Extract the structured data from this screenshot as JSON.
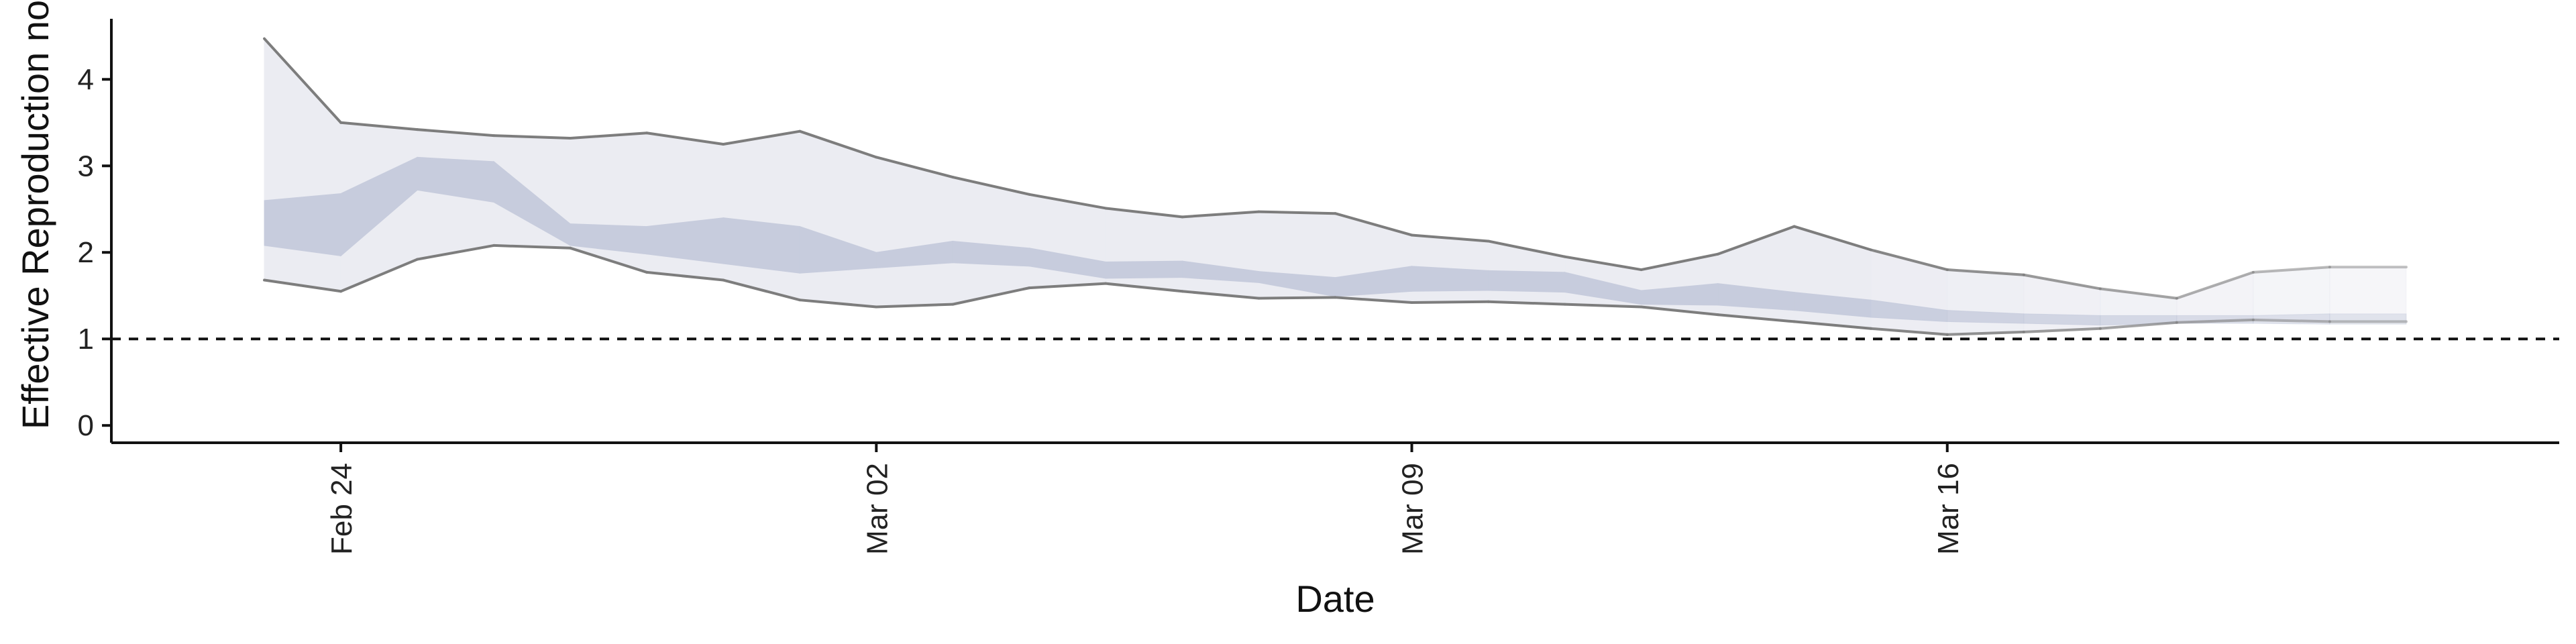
{
  "chart_data": {
    "type": "area",
    "title": "",
    "xlabel": "Date",
    "ylabel": "Effective Reproduction no",
    "ylim": [
      -0.2,
      4.7
    ],
    "xlim": [
      "2020-02-21",
      "2020-03-24"
    ],
    "x_ticks": [
      {
        "date": "2020-02-24",
        "label": "Feb 24"
      },
      {
        "date": "2020-03-02",
        "label": "Mar 02"
      },
      {
        "date": "2020-03-09",
        "label": "Mar 09"
      },
      {
        "date": "2020-03-16",
        "label": "Mar 16"
      }
    ],
    "y_ticks": [
      0,
      1,
      2,
      3,
      4
    ],
    "reference_line": {
      "y": 1,
      "style": "dashed"
    },
    "grid": false,
    "colors": {
      "outer_band": "#ebecf2",
      "inner_band": "#c7ccdd",
      "bound_line": "#7d7d7d",
      "reference_line": "#111111",
      "axis": "#111111"
    },
    "dates": [
      "2020-02-23",
      "2020-02-24",
      "2020-02-25",
      "2020-02-26",
      "2020-02-27",
      "2020-02-28",
      "2020-02-29",
      "2020-03-01",
      "2020-03-02",
      "2020-03-03",
      "2020-03-04",
      "2020-03-05",
      "2020-03-06",
      "2020-03-07",
      "2020-03-08",
      "2020-03-09",
      "2020-03-10",
      "2020-03-11",
      "2020-03-12",
      "2020-03-13",
      "2020-03-14",
      "2020-03-15",
      "2020-03-16",
      "2020-03-17",
      "2020-03-18",
      "2020-03-19",
      "2020-03-20",
      "2020-03-21",
      "2020-03-22"
    ],
    "series": [
      {
        "band": "outer",
        "lower": [
          1.68,
          1.55,
          1.92,
          2.08,
          2.05,
          1.77,
          1.68,
          1.45,
          1.37,
          1.4,
          1.59,
          1.64,
          1.55,
          1.47,
          1.48,
          1.42,
          1.43,
          1.4,
          1.37,
          1.28,
          1.2,
          1.12,
          1.05,
          1.08,
          1.12,
          1.19,
          1.22,
          1.2,
          1.2
        ],
        "upper": [
          4.47,
          3.5,
          3.42,
          3.35,
          3.32,
          3.38,
          3.25,
          3.4,
          3.1,
          2.87,
          2.67,
          2.51,
          2.41,
          2.47,
          2.45,
          2.2,
          2.13,
          1.95,
          1.8,
          1.98,
          2.3,
          2.03,
          1.8,
          1.74,
          1.58,
          1.47,
          1.77,
          1.83,
          1.83
        ]
      },
      {
        "band": "inner",
        "lower": [
          2.08,
          1.96,
          2.72,
          2.58,
          2.08,
          1.98,
          1.87,
          1.76,
          1.82,
          1.88,
          1.84,
          1.7,
          1.71,
          1.65,
          1.49,
          1.55,
          1.56,
          1.54,
          1.4,
          1.39,
          1.33,
          1.25,
          1.2,
          1.18,
          1.16,
          1.18,
          1.18,
          1.17,
          1.17
        ],
        "upper": [
          2.6,
          2.68,
          3.1,
          3.05,
          2.33,
          2.3,
          2.4,
          2.3,
          2.0,
          2.13,
          2.05,
          1.89,
          1.9,
          1.78,
          1.71,
          1.84,
          1.79,
          1.77,
          1.56,
          1.64,
          1.54,
          1.45,
          1.33,
          1.29,
          1.27,
          1.27,
          1.27,
          1.29,
          1.29
        ]
      }
    ]
  }
}
